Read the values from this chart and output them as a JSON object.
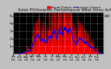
{
  "title": "Solar PV/Inverter Performance West Array Actual & Average Power Output",
  "title_fontsize": 4.2,
  "bg_color": "#c0c0c0",
  "plot_bg_color": "#000000",
  "bar_color": "#ff0000",
  "avg_line_color": "#0000ff",
  "grid_color": "#ffffff",
  "ylim": [
    0,
    5.5
  ],
  "ytick_vals": [
    1,
    2,
    3,
    4,
    5
  ],
  "ytick_labels": [
    "1",
    "2",
    "3",
    "4",
    "5"
  ],
  "xlabel_fontsize": 3.0,
  "ylabel_fontsize": 3.5,
  "legend_fontsize": 3.2,
  "legend_actual": "Actual Output",
  "legend_avg": "Average Output",
  "x_labels": [
    "Jan\n'04",
    "Feb\n'04",
    "Mar\n'04",
    "Apr\n'04",
    "May\n'04",
    "Jun\n'04",
    "Jul\n'04",
    "Aug\n'04",
    "Sep\n'04",
    "Oct\n'04",
    "Nov\n'04",
    "Dec\n'04",
    "Jan\n'05",
    "Feb\n'05"
  ],
  "right_label": "kW",
  "seed": 12
}
